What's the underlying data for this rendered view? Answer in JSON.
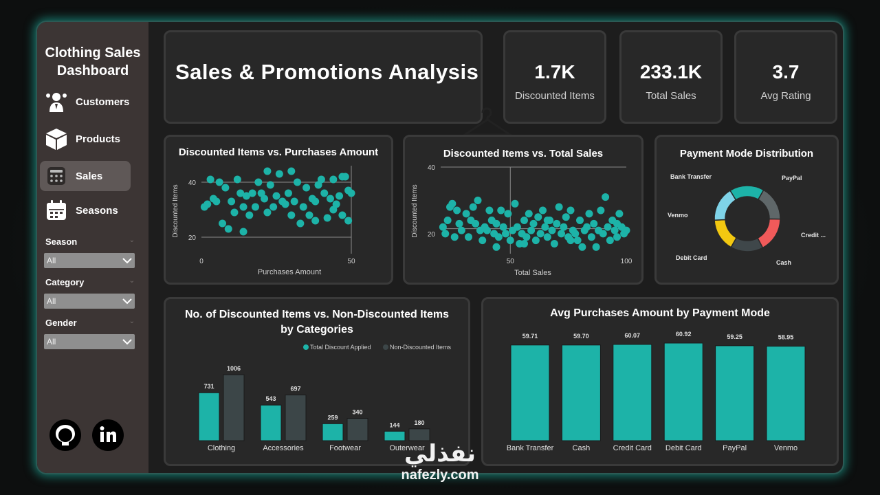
{
  "sidebar": {
    "title_line1": "Clothing Sales",
    "title_line2": "Dashboard",
    "nav": [
      {
        "label": "Customers",
        "icon": "customers-icon"
      },
      {
        "label": "Products",
        "icon": "box-icon"
      },
      {
        "label": "Sales",
        "icon": "sales-icon",
        "active": true
      },
      {
        "label": "Seasons",
        "icon": "calendar-icon"
      }
    ],
    "slicers": [
      {
        "label": "Season",
        "value": "All"
      },
      {
        "label": "Category",
        "value": "All"
      },
      {
        "label": "Gender",
        "value": "All"
      }
    ],
    "social": [
      "github-icon",
      "linkedin-icon"
    ]
  },
  "header": {
    "title": "Sales & Promotions Analysis"
  },
  "kpis": [
    {
      "value": "1.7K",
      "label": "Discounted Items"
    },
    {
      "value": "233.1K",
      "label": "Total Sales"
    },
    {
      "value": "3.7",
      "label": "Avg Rating"
    }
  ],
  "colors": {
    "teal": "#1db3a8",
    "dark_teal": "#3c4648",
    "coral": "#f05a5a",
    "yellow": "#f2c811",
    "light_blue": "#7fd3e8",
    "gray": "#5f6769",
    "dark_gray": "#3f474a"
  },
  "scatter1": {
    "title": "Discounted Items vs. Purchases Amount",
    "xlabel": "Purchases Amount",
    "ylabel": "Discounted Items",
    "xticks": [
      "0",
      "50"
    ],
    "yticks": [
      "20",
      "40"
    ]
  },
  "scatter2": {
    "title": "Discounted Items vs. Total Sales",
    "xlabel": "Total Sales",
    "ylabel": "Discounted Items",
    "xticks": [
      "50",
      "100"
    ],
    "yticks": [
      "20",
      "40"
    ]
  },
  "donut": {
    "title": "Payment Mode Distribution",
    "labels": [
      "Bank Transfer",
      "PayPal",
      "Credit ...",
      "Cash",
      "Debit Card",
      "Venmo"
    ]
  },
  "grouped": {
    "title_line1": "No. of Discounted Items vs. Non-Discounted Items",
    "title_line2": "by Categories",
    "legend": [
      "Total Discount Applied",
      "Non-Discounted Items"
    ]
  },
  "bars": {
    "title": "Avg Purchases Amount by Payment Mode"
  },
  "watermark": {
    "arabic": "نفذلي",
    "latin": "nafezly.com"
  },
  "chart_data": [
    {
      "type": "scatter",
      "title": "Discounted Items vs. Purchases Amount",
      "xlabel": "Purchases Amount",
      "ylabel": "Discounted Items",
      "xlim": [
        0,
        50
      ],
      "ylim": [
        14,
        46
      ],
      "points": [
        [
          1,
          31
        ],
        [
          2,
          32
        ],
        [
          3,
          41
        ],
        [
          4,
          34
        ],
        [
          5,
          33
        ],
        [
          6,
          40
        ],
        [
          7,
          25
        ],
        [
          8,
          38
        ],
        [
          9,
          23
        ],
        [
          10,
          33
        ],
        [
          11,
          29
        ],
        [
          12,
          41
        ],
        [
          13,
          36
        ],
        [
          14,
          31
        ],
        [
          15,
          35
        ],
        [
          16,
          28
        ],
        [
          17,
          36
        ],
        [
          18,
          31
        ],
        [
          19,
          40
        ],
        [
          20,
          36
        ],
        [
          21,
          34
        ],
        [
          22,
          44
        ],
        [
          23,
          39
        ],
        [
          24,
          31
        ],
        [
          25,
          35
        ],
        [
          26,
          43
        ],
        [
          27,
          33
        ],
        [
          28,
          32
        ],
        [
          29,
          36
        ],
        [
          30,
          28
        ],
        [
          31,
          33
        ],
        [
          32,
          40
        ],
        [
          33,
          25
        ],
        [
          34,
          31
        ],
        [
          35,
          38
        ],
        [
          36,
          28
        ],
        [
          37,
          34
        ],
        [
          38,
          33
        ],
        [
          39,
          39
        ],
        [
          40,
          41
        ],
        [
          41,
          36
        ],
        [
          42,
          27
        ],
        [
          43,
          34
        ],
        [
          44,
          30
        ],
        [
          45,
          32
        ],
        [
          46,
          35
        ],
        [
          47,
          28
        ],
        [
          48,
          42
        ],
        [
          49,
          37
        ],
        [
          49,
          26
        ],
        [
          50,
          36
        ],
        [
          14,
          22
        ],
        [
          22,
          29
        ],
        [
          30,
          44
        ],
        [
          38,
          26
        ],
        [
          44,
          41
        ],
        [
          47,
          42
        ]
      ]
    },
    {
      "type": "scatter",
      "title": "Discounted Items vs. Total Sales",
      "xlabel": "Total Sales",
      "ylabel": "Discounted Items",
      "xlim": [
        20,
        100
      ],
      "ylim": [
        14,
        40
      ],
      "points": [
        [
          21,
          22
        ],
        [
          22,
          20
        ],
        [
          23,
          24
        ],
        [
          24,
          28
        ],
        [
          25,
          29
        ],
        [
          27,
          27
        ],
        [
          28,
          23
        ],
        [
          29,
          21
        ],
        [
          31,
          26
        ],
        [
          32,
          19
        ],
        [
          33,
          24
        ],
        [
          34,
          28
        ],
        [
          35,
          23
        ],
        [
          36,
          30
        ],
        [
          37,
          21
        ],
        [
          38,
          18
        ],
        [
          39,
          22
        ],
        [
          40,
          21
        ],
        [
          41,
          27
        ],
        [
          42,
          24
        ],
        [
          43,
          20
        ],
        [
          44,
          23
        ],
        [
          45,
          19
        ],
        [
          46,
          27
        ],
        [
          47,
          22
        ],
        [
          48,
          20
        ],
        [
          49,
          26
        ],
        [
          50,
          18
        ],
        [
          51,
          21
        ],
        [
          52,
          29
        ],
        [
          53,
          22
        ],
        [
          54,
          17
        ],
        [
          55,
          20
        ],
        [
          56,
          24
        ],
        [
          57,
          19
        ],
        [
          58,
          26
        ],
        [
          59,
          21
        ],
        [
          60,
          23
        ],
        [
          61,
          18
        ],
        [
          62,
          25
        ],
        [
          63,
          20
        ],
        [
          64,
          27
        ],
        [
          65,
          22
        ],
        [
          66,
          19
        ],
        [
          67,
          24
        ],
        [
          68,
          21
        ],
        [
          69,
          17
        ],
        [
          70,
          23
        ],
        [
          71,
          28
        ],
        [
          72,
          20
        ],
        [
          73,
          22
        ],
        [
          74,
          25
        ],
        [
          75,
          19
        ],
        [
          76,
          27
        ],
        [
          77,
          21
        ],
        [
          78,
          20
        ],
        [
          79,
          18
        ],
        [
          80,
          24
        ],
        [
          81,
          16
        ],
        [
          82,
          21
        ],
        [
          83,
          22
        ],
        [
          84,
          26
        ],
        [
          85,
          19
        ],
        [
          86,
          23
        ],
        [
          87,
          16
        ],
        [
          88,
          21
        ],
        [
          89,
          27
        ],
        [
          90,
          20
        ],
        [
          91,
          31
        ],
        [
          92,
          22
        ],
        [
          93,
          18
        ],
        [
          94,
          24
        ],
        [
          95,
          21
        ],
        [
          96,
          19
        ],
        [
          97,
          26
        ],
        [
          98,
          22
        ],
        [
          99,
          20
        ],
        [
          100,
          21
        ],
        [
          26,
          19
        ],
        [
          44,
          16
        ],
        [
          56,
          17
        ],
        [
          66,
          24
        ],
        [
          76,
          18
        ],
        [
          96,
          23
        ]
      ]
    },
    {
      "type": "pie",
      "title": "Payment Mode Distribution",
      "categories": [
        "Bank Transfer",
        "PayPal",
        "Credit ...",
        "Cash",
        "Debit Card",
        "Venmo"
      ],
      "values": [
        17,
        17,
        17,
        16,
        16,
        17
      ],
      "colors": [
        "#1db3a8",
        "#5f6769",
        "#f05a5a",
        "#3f474a",
        "#f2c811",
        "#7fd3e8"
      ]
    },
    {
      "type": "bar",
      "title": "No. of Discounted Items vs. Non-Discounted Items by Categories",
      "categories": [
        "Clothing",
        "Accessories",
        "Footwear",
        "Outerwear"
      ],
      "series": [
        {
          "name": "Total Discount Applied",
          "values": [
            731,
            543,
            259,
            144
          ]
        },
        {
          "name": "Non-Discounted Items",
          "values": [
            1006,
            697,
            340,
            180
          ]
        }
      ],
      "ylim": [
        0,
        1006
      ]
    },
    {
      "type": "bar",
      "title": "Avg Purchases Amount by Payment Mode",
      "categories": [
        "Bank Transfer",
        "Cash",
        "Credit Card",
        "Debit Card",
        "PayPal",
        "Venmo"
      ],
      "values": [
        59.71,
        59.7,
        60.07,
        60.92,
        59.25,
        58.95
      ],
      "value_labels": [
        "59.71",
        "59.70",
        "60.07",
        "60.92",
        "59.25",
        "58.95"
      ],
      "ylim": [
        0,
        60.92
      ]
    }
  ]
}
